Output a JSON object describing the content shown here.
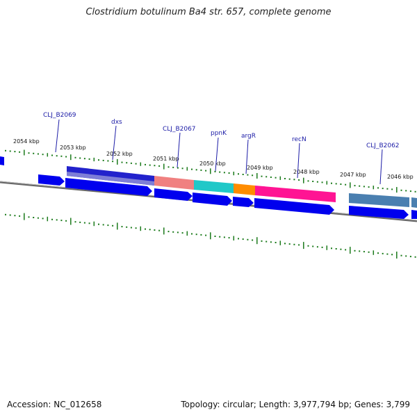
{
  "title": "Clostridium botulinum Ba4 str. 657, complete genome",
  "footer": {
    "accession": "Accession: NC_012658",
    "summary": "Topology: circular; Length: 3,977,794 bp; Genes: 3,799"
  },
  "ticks": [
    "2054 kbp",
    "2053 kbp",
    "2052 kbp",
    "2051 kbp",
    "2050 kbp",
    "2049 kbp",
    "2048 kbp",
    "2047 kbp",
    "2046 kbp"
  ],
  "gene_labels": [
    "CLJ_B2069",
    "dxs",
    "CLJ_B2067",
    "ppnK",
    "argR",
    "recN",
    "CLJ_B2062"
  ],
  "colors": {
    "gene_blue": "#0000ee",
    "backbone": "#808080",
    "tick_green": "#1a7a1a",
    "label_blue": "#1a1aa6",
    "pink": "#ff1493",
    "salmon": "#f08080",
    "cyan": "#20c8c8",
    "orange": "#ff8c00",
    "steel": "#4a7fb0",
    "lavender": "#8080d0"
  }
}
